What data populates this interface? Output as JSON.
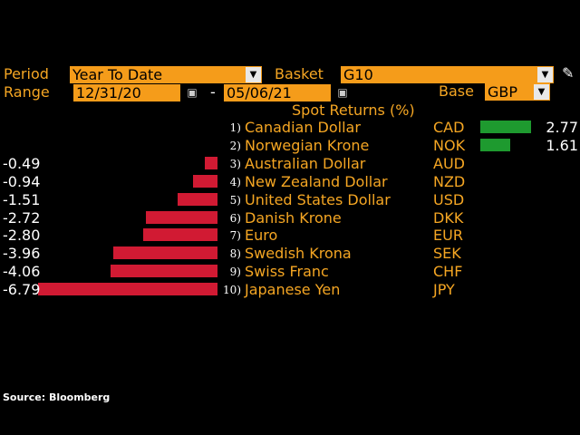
{
  "controls": {
    "period_label": "Period",
    "period_value": "Year To Date",
    "basket_label": "Basket",
    "basket_value": "G10",
    "range_label": "Range",
    "start_date": "12/31/20",
    "date_separator": "-",
    "end_date": "05/06/21",
    "base_label": "Base",
    "base_value": "GBP"
  },
  "chart_data": {
    "type": "bar",
    "title": "Spot Returns (%)",
    "series": [
      {
        "values": [
          2.77,
          1.61,
          -0.49,
          -0.94,
          -1.51,
          -2.72,
          -2.8,
          -3.96,
          -4.06,
          -6.79
        ]
      }
    ],
    "ranks": [
      "1)",
      "2)",
      "3)",
      "4)",
      "5)",
      "6)",
      "7)",
      "8)",
      "9)",
      "10)"
    ],
    "categories": [
      "Canadian Dollar",
      "Norwegian Krone",
      "Australian Dollar",
      "New Zealand Dollar",
      "United States Dollar",
      "Danish Krone",
      "Euro",
      "Swedish Krona",
      "Swiss Franc",
      "Japanese Yen"
    ],
    "codes": [
      "CAD",
      "NOK",
      "AUD",
      "NZD",
      "USD",
      "DKK",
      "EUR",
      "SEK",
      "CHF",
      "JPY"
    ],
    "value_labels": [
      "2.77",
      "1.61",
      "-0.49",
      "-0.94",
      "-1.51",
      "-2.72",
      "-2.80",
      "-3.96",
      "-4.06",
      "-6.79"
    ],
    "colors": {
      "positive": "#1e9a2f",
      "negative": "#d11a33"
    }
  },
  "footer": {
    "source": "Source: Bloomberg"
  },
  "icons": {
    "dropdown": "chevron-down-icon",
    "calendar": "calendar-icon",
    "edit": "pencil-icon"
  }
}
